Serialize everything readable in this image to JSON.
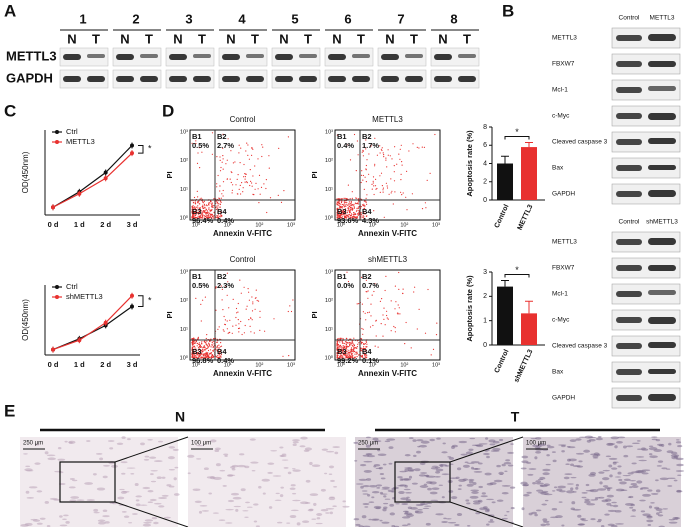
{
  "panel_a": {
    "label": "A",
    "lanes": [
      "1",
      "2",
      "3",
      "4",
      "5",
      "6",
      "7",
      "8"
    ],
    "lane_labels": [
      "N",
      "T"
    ],
    "rows": [
      "METTL3",
      "GAPDH"
    ]
  },
  "panel_b": {
    "label": "B",
    "blocks": [
      {
        "headers": [
          "Control",
          "METTL3"
        ],
        "rows": [
          "METTL3",
          "FBXW7",
          "Mcl-1",
          "c-Myc",
          "Cleaved caspase 3",
          "Bax",
          "GAPDH"
        ]
      },
      {
        "headers": [
          "Control",
          "shMETTL3"
        ],
        "rows": [
          "METTL3",
          "FBXW7",
          "Mcl-1",
          "c-Myc",
          "Cleaved caspase 3",
          "Bax",
          "GAPDH"
        ]
      }
    ]
  },
  "panel_c": {
    "label": "C",
    "charts": [
      {
        "type": "line",
        "y_label": "OD(450nm)",
        "x": [
          "0 d",
          "1 d",
          "2 d",
          "3 d"
        ],
        "ylim": [
          0,
          2.2
        ],
        "annotation": "*",
        "series": [
          {
            "name": "Ctrl",
            "color": "#111111",
            "values": [
              0.2,
              0.6,
              1.1,
              1.8
            ]
          },
          {
            "name": "METTL3",
            "color": "#e8312f",
            "values": [
              0.2,
              0.55,
              0.95,
              1.6
            ]
          }
        ]
      },
      {
        "type": "line",
        "y_label": "OD(450nm)",
        "x": [
          "0 d",
          "1 d",
          "2 d",
          "3 d"
        ],
        "ylim": [
          0,
          2.6
        ],
        "annotation": "*",
        "series": [
          {
            "name": "Ctrl",
            "color": "#111111",
            "values": [
              0.2,
              0.6,
              1.1,
              1.8
            ]
          },
          {
            "name": "shMETTL3",
            "color": "#e8312f",
            "values": [
              0.2,
              0.55,
              1.2,
              2.2
            ]
          }
        ]
      }
    ]
  },
  "panel_d": {
    "label": "D",
    "x_label": "Annexin V-FITC",
    "y_label": "PI",
    "ticks": [
      "10⁰",
      "10¹",
      "10²",
      "10³"
    ],
    "plots": [
      {
        "title": "Control",
        "quadrants": [
          {
            "name": "B1",
            "value": "0.5%"
          },
          {
            "name": "B2",
            "value": "2.7%"
          },
          {
            "name": "B3",
            "value": "96.4%"
          },
          {
            "name": "B4",
            "value": "0.4%"
          }
        ]
      },
      {
        "title": "METTL3",
        "quadrants": [
          {
            "name": "B1",
            "value": "0.4%"
          },
          {
            "name": "B2",
            "value": "1.7%"
          },
          {
            "name": "B3",
            "value": "93.6%"
          },
          {
            "name": "B4",
            "value": "4.3%"
          }
        ]
      },
      {
        "title": "Control",
        "quadrants": [
          {
            "name": "B1",
            "value": "0.5%"
          },
          {
            "name": "B2",
            "value": "2.3%"
          },
          {
            "name": "B3",
            "value": "96.8%"
          },
          {
            "name": "B4",
            "value": "0.4%"
          }
        ]
      },
      {
        "title": "shMETTL3",
        "quadrants": [
          {
            "name": "B1",
            "value": "0.0%"
          },
          {
            "name": "B2",
            "value": "0.7%"
          },
          {
            "name": "B3",
            "value": "99.2%"
          },
          {
            "name": "B4",
            "value": "0.1%"
          }
        ]
      }
    ],
    "bars": [
      {
        "type": "bar",
        "y_label": "Apoptosis rate (%)",
        "categories": [
          "Control",
          "METTL3"
        ],
        "values": [
          4.0,
          5.8
        ],
        "errors": [
          0.8,
          0.5
        ],
        "colors": [
          "#111111",
          "#e8312f"
        ],
        "ylim": [
          0,
          8
        ],
        "yticks": [
          0,
          2,
          4,
          6,
          8
        ],
        "annotation": "*"
      },
      {
        "type": "bar",
        "y_label": "Apoptosis rate  (%)",
        "categories": [
          "Control",
          "shMETTL3"
        ],
        "values": [
          2.4,
          1.3
        ],
        "errors": [
          0.25,
          0.5
        ],
        "colors": [
          "#111111",
          "#e8312f"
        ],
        "ylim": [
          0,
          3
        ],
        "yticks": [
          0,
          1,
          2,
          3
        ],
        "annotation": "*"
      }
    ]
  },
  "panel_e": {
    "label": "E",
    "groups": [
      {
        "name": "N",
        "scale_bars": [
          "250 μm",
          "100 μm"
        ]
      },
      {
        "name": "T",
        "scale_bars": [
          "250 μm",
          "100 μm"
        ]
      }
    ]
  }
}
